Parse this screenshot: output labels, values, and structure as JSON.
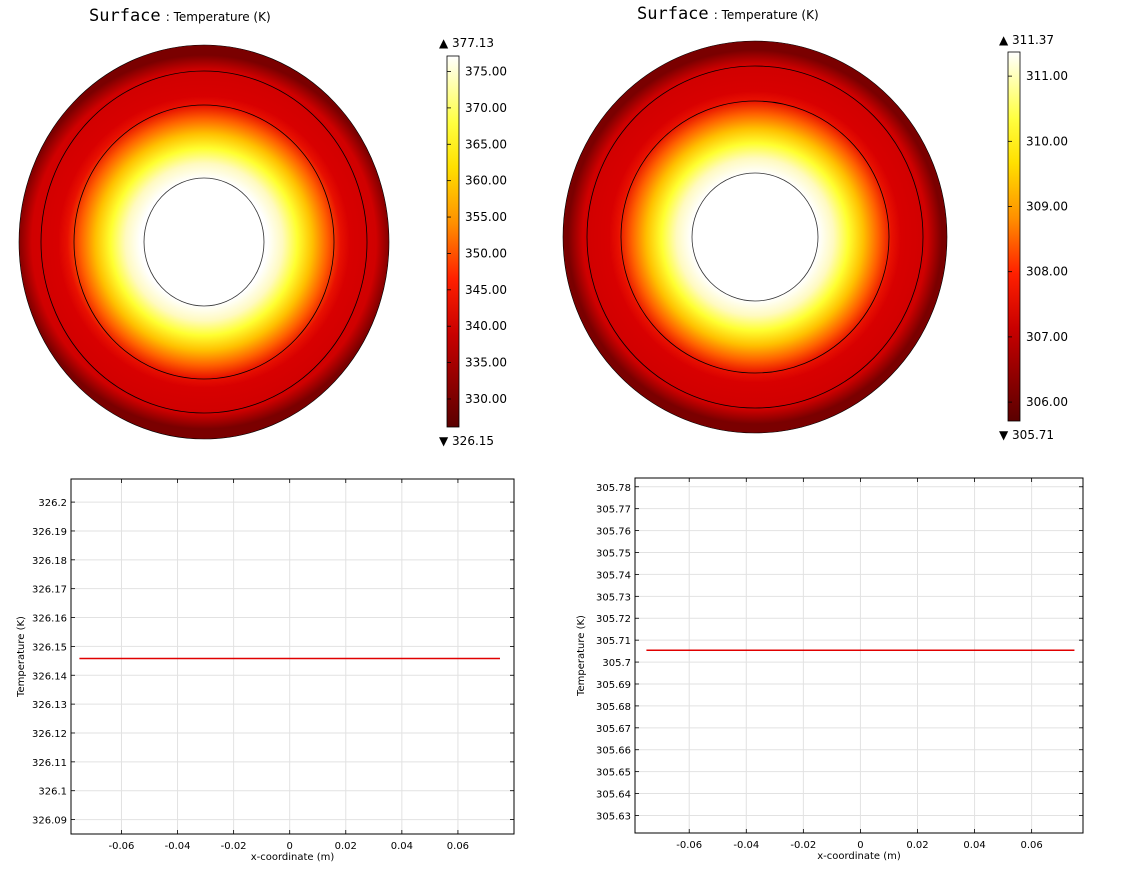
{
  "surface_plots": [
    {
      "title_main": "Surface",
      "title_sub": ": Temperature (K)",
      "max_label": "▲ 377.13",
      "min_label": "▼ 326.15",
      "max": 377.13,
      "min": 326.15,
      "ticks": [
        "375.00",
        "370.00",
        "365.00",
        "360.00",
        "355.00",
        "350.00",
        "345.00",
        "340.00",
        "335.00",
        "330.00"
      ],
      "tick_values": [
        375,
        370,
        365,
        360,
        355,
        350,
        345,
        340,
        335,
        330
      ]
    },
    {
      "title_main": "Surface",
      "title_sub": ": Temperature (K)",
      "max_label": "▲ 311.37",
      "min_label": "▼ 305.71",
      "max": 311.37,
      "min": 305.71,
      "ticks": [
        "311.00",
        "310.00",
        "309.00",
        "308.00",
        "307.00",
        "306.00"
      ],
      "tick_values": [
        311,
        310,
        309,
        308,
        307,
        306
      ]
    }
  ],
  "chart_data": [
    {
      "type": "line",
      "xlabel": "x-coordinate (m)",
      "ylabel": "Temperature (K)",
      "xlim": [
        -0.078,
        0.08
      ],
      "ylim": [
        326.085,
        326.208
      ],
      "x_ticks": [
        -0.06,
        -0.04,
        -0.02,
        0,
        0.02,
        0.04,
        0.06
      ],
      "x_tick_labels": [
        "-0.06",
        "-0.04",
        "-0.02",
        "0",
        "0.02",
        "0.04",
        "0.06"
      ],
      "y_ticks": [
        326.09,
        326.1,
        326.11,
        326.12,
        326.13,
        326.14,
        326.15,
        326.16,
        326.17,
        326.18,
        326.19,
        326.2
      ],
      "y_tick_labels": [
        "326.09",
        "326.1",
        "326.11",
        "326.12",
        "326.13",
        "326.14",
        "326.15",
        "326.16",
        "326.17",
        "326.18",
        "326.19",
        "326.2"
      ],
      "grid": true,
      "series": [
        {
          "color": "#e00000",
          "x": [
            -0.075,
            0.075
          ],
          "y": [
            326.1458,
            326.1458
          ]
        }
      ]
    },
    {
      "type": "line",
      "xlabel": "x-coordinate (m)",
      "ylabel": "Temperature (K)",
      "xlim": [
        -0.079,
        0.078
      ],
      "ylim": [
        305.622,
        305.784
      ],
      "x_ticks": [
        -0.06,
        -0.04,
        -0.02,
        0,
        0.02,
        0.04,
        0.06
      ],
      "x_tick_labels": [
        "-0.06",
        "-0.04",
        "-0.02",
        "0",
        "0.02",
        "0.04",
        "0.06"
      ],
      "y_ticks": [
        305.63,
        305.64,
        305.65,
        305.66,
        305.67,
        305.68,
        305.69,
        305.7,
        305.71,
        305.72,
        305.73,
        305.74,
        305.75,
        305.76,
        305.77,
        305.78
      ],
      "y_tick_labels": [
        "305.63",
        "305.64",
        "305.65",
        "305.66",
        "305.67",
        "305.68",
        "305.69",
        "305.7",
        "305.71",
        "305.72",
        "305.73",
        "305.74",
        "305.75",
        "305.76",
        "305.77",
        "305.78"
      ],
      "grid": true,
      "series": [
        {
          "color": "#e00000",
          "x": [
            -0.075,
            0.075
          ],
          "y": [
            305.7054,
            305.7054
          ]
        }
      ]
    }
  ]
}
